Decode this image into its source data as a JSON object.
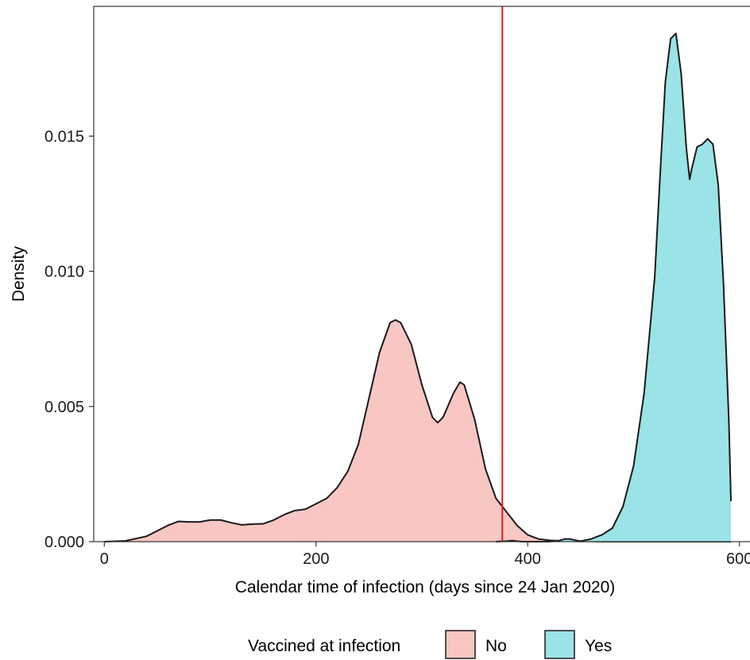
{
  "chart_data": {
    "type": "area",
    "xlabel": "Calendar time of infection (days since 24 Jan 2020)",
    "ylabel": "Density",
    "xlim": [
      -10,
      610
    ],
    "ylim": [
      0,
      0.0198
    ],
    "x_ticks": [
      0,
      200,
      400,
      600
    ],
    "x_tick_labels": [
      "0",
      "200",
      "400",
      "600"
    ],
    "y_ticks": [
      0,
      0.005,
      0.01,
      0.015
    ],
    "y_tick_labels": [
      "0.000",
      "0.005",
      "0.010",
      "0.015"
    ],
    "grid": false,
    "legend": {
      "title": "Vaccined at infection",
      "position": "bottom"
    },
    "reference_line": {
      "x": 376,
      "color": "#e31a1c"
    },
    "series": [
      {
        "name": "No",
        "color": "#f8c6c3",
        "x": [
          0,
          20,
          40,
          50,
          60,
          70,
          80,
          90,
          100,
          110,
          120,
          130,
          140,
          150,
          160,
          170,
          180,
          190,
          200,
          210,
          220,
          230,
          240,
          250,
          260,
          270,
          275,
          280,
          290,
          300,
          310,
          315,
          320,
          330,
          336,
          340,
          350,
          360,
          370,
          380,
          390,
          400,
          410,
          420,
          430,
          440,
          450,
          460,
          470,
          480,
          490,
          500,
          520,
          540,
          560,
          580,
          592
        ],
        "values": [
          0,
          3e-05,
          0.0002,
          0.0004,
          0.0006,
          0.00075,
          0.00073,
          0.00073,
          0.0008,
          0.0008,
          0.0007,
          0.00062,
          0.00065,
          0.00066,
          0.0008,
          0.001,
          0.00115,
          0.0012,
          0.0014,
          0.0016,
          0.002,
          0.0026,
          0.0036,
          0.0053,
          0.007,
          0.0081,
          0.0082,
          0.0081,
          0.0073,
          0.0058,
          0.0046,
          0.0044,
          0.0046,
          0.0055,
          0.0059,
          0.0058,
          0.0045,
          0.0027,
          0.0016,
          0.0011,
          0.0006,
          0.00025,
          0.0001,
          5e-05,
          3e-05,
          2e-05,
          1e-05,
          1e-05,
          0,
          0,
          0,
          0,
          0,
          0,
          0,
          0,
          0
        ]
      },
      {
        "name": "Yes",
        "color": "#9ae3e6",
        "x": [
          370,
          380,
          385,
          390,
          395,
          400,
          420,
          430,
          435,
          440,
          445,
          450,
          460,
          470,
          480,
          490,
          500,
          510,
          520,
          525,
          530,
          535,
          540,
          545,
          550,
          553,
          555,
          560,
          565,
          570,
          575,
          580,
          585,
          590,
          592
        ],
        "values": [
          0,
          2e-05,
          4e-05,
          2e-05,
          0,
          0,
          0,
          4e-05,
          0.0001,
          0.0001,
          5e-05,
          2e-05,
          0.0001,
          0.00025,
          0.0005,
          0.0013,
          0.0028,
          0.0055,
          0.0098,
          0.0135,
          0.017,
          0.0186,
          0.0188,
          0.0173,
          0.0145,
          0.0134,
          0.0138,
          0.0146,
          0.0147,
          0.0149,
          0.0147,
          0.0132,
          0.0095,
          0.0045,
          0.0015
        ]
      }
    ]
  }
}
